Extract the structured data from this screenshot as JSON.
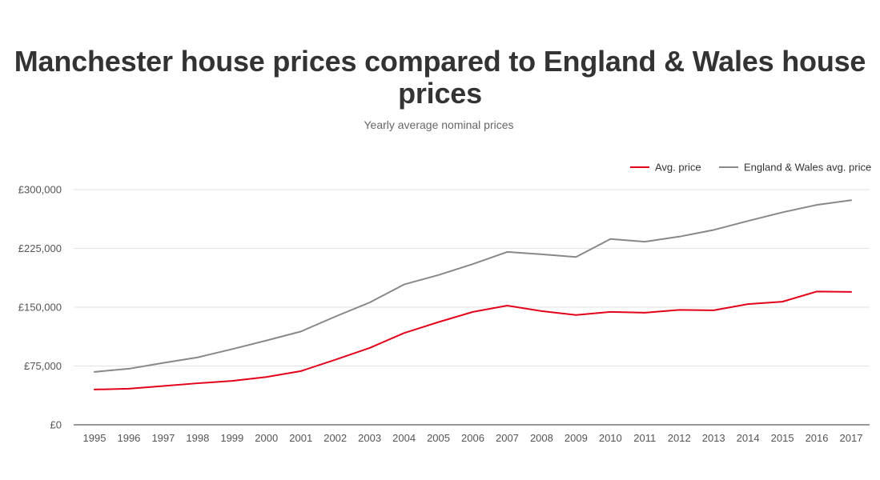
{
  "chart_data": {
    "type": "line",
    "title": "Manchester house prices compared to England & Wales house prices",
    "subtitle": "Yearly average nominal prices",
    "x": [
      "1995",
      "1996",
      "1997",
      "1998",
      "1999",
      "2000",
      "2001",
      "2002",
      "2003",
      "2004",
      "2005",
      "2006",
      "2007",
      "2008",
      "2009",
      "2010",
      "2011",
      "2012",
      "2013",
      "2014",
      "2015",
      "2016",
      "2017"
    ],
    "series": [
      {
        "name": "Avg. price",
        "color": "#e3001b",
        "values": [
          45000,
          46000,
          49500,
          53000,
          56000,
          61000,
          68500,
          83000,
          98000,
          117000,
          131000,
          144000,
          152000,
          145000,
          140000,
          144000,
          143000,
          146500,
          146000,
          154000,
          157000,
          170000,
          169500
        ]
      },
      {
        "name": "England & Wales avg. price",
        "color": "#888888",
        "values": [
          67500,
          71500,
          79000,
          86000,
          96500,
          107500,
          119000,
          138000,
          156000,
          179000,
          191000,
          205000,
          220500,
          217500,
          214000,
          237000,
          233500,
          240000,
          248500,
          260000,
          271000,
          280500,
          286500
        ]
      }
    ],
    "yticks": [
      "£0",
      "£75,000",
      "£150,000",
      "£225,000",
      "£300,000"
    ],
    "ylim": [
      0,
      300000
    ],
    "ytick_step": 75000,
    "xlabel": "",
    "ylabel": "",
    "grid": true,
    "legend_position": "top-right"
  }
}
